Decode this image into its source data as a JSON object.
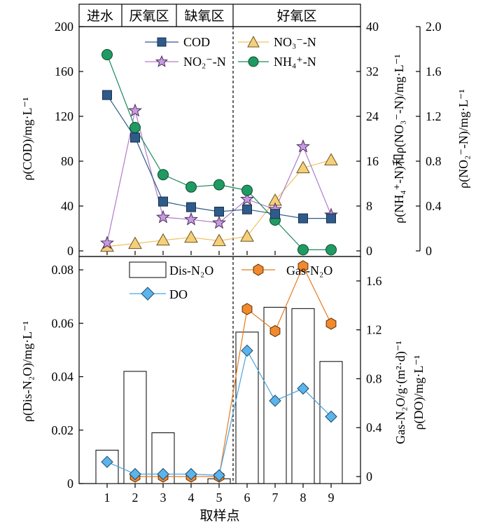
{
  "figure": {
    "zones": [
      "进水",
      "厌氧区",
      "缺氧区",
      "好氧区"
    ],
    "xlabel": "取样点"
  },
  "colors": {
    "cod": "#2e5b8a",
    "no3": "#f0c060",
    "no2": "#b07cc6",
    "nh4": "#1a8a5a",
    "gas": "#e87a1e",
    "do": "#4aa3e0"
  },
  "chart_data": [
    {
      "type": "line",
      "panel": "top",
      "categories": [
        "1",
        "2",
        "3",
        "4",
        "5",
        "6",
        "7",
        "8",
        "9"
      ],
      "ylabel_left": "ρ(COD)/mg·L⁻¹",
      "ylabel_right_1": "ρ(NH₄⁺-N)和ρ(NO₃⁻-N)/mg·L⁻¹",
      "ylabel_right_2": "ρ(NO₂⁻-N)/mg·L⁻¹",
      "ylim_left": [
        0,
        200
      ],
      "ylim_right_1": [
        0,
        40
      ],
      "ylim_right_2": [
        0,
        2.0
      ],
      "yticks_left": [
        "0",
        "40",
        "80",
        "120",
        "160",
        "200"
      ],
      "yticks_right_1": [
        "0",
        "8",
        "16",
        "24",
        "32",
        "40"
      ],
      "yticks_right_2": [
        "0",
        "0.4",
        "0.8",
        "1.2",
        "1.6",
        "2.0"
      ],
      "legend": [
        "COD",
        "NO₃⁻-N",
        "NO₂⁻-N",
        "NH₄⁺-N"
      ],
      "series": [
        {
          "name": "COD",
          "axis": "left",
          "values": [
            139,
            101,
            44,
            39,
            35,
            37,
            33,
            29,
            29
          ]
        },
        {
          "name": "NO₃⁻-N",
          "axis": "right_1",
          "values": [
            0.8,
            1.3,
            1.9,
            2.4,
            1.8,
            2.6,
            9.0,
            14.8,
            16.2
          ]
        },
        {
          "name": "NO₂⁻-N",
          "axis": "right_2",
          "values": [
            0.07,
            1.25,
            0.3,
            0.28,
            0.25,
            0.46,
            0.37,
            0.93,
            0.32
          ]
        },
        {
          "name": "NH₄⁺-N",
          "axis": "right_1",
          "values": [
            35.0,
            22.0,
            13.6,
            11.4,
            11.8,
            10.8,
            5.5,
            0.2,
            0.2
          ]
        }
      ]
    },
    {
      "type": "bar",
      "panel": "bottom",
      "categories": [
        "1",
        "2",
        "3",
        "4",
        "5",
        "6",
        "7",
        "8",
        "9"
      ],
      "xlabel": "取样点",
      "ylabel_left": "ρ(Dis-N₂O)/mg·L⁻¹",
      "ylabel_right": "Gas-N₂O/g·(m²·d)⁻¹",
      "ylabel_right_2": "ρ(DO)/mg·L⁻¹",
      "ylim_left": [
        0,
        0.085
      ],
      "ylim_right": [
        0,
        1.8
      ],
      "yticks_left": [
        "0",
        "0.02",
        "0.04",
        "0.06",
        "0.08"
      ],
      "yticks_right": [
        "0",
        "0.4",
        "0.8",
        "1.2",
        "1.6"
      ],
      "legend": [
        "Dis-N₂O",
        "Gas-N₂O",
        "DO"
      ],
      "series": [
        {
          "name": "Dis-N₂O",
          "kind": "bar",
          "axis": "left",
          "values": [
            0.0125,
            0.042,
            0.019,
            0.0,
            0.0018,
            0.0567,
            0.066,
            0.0655,
            0.0457
          ]
        },
        {
          "name": "Gas-N₂O",
          "kind": "line",
          "axis": "right",
          "values": [
            null,
            0.0,
            0.0,
            0.0,
            0.0,
            1.37,
            1.19,
            1.72,
            1.25
          ]
        },
        {
          "name": "DO",
          "kind": "line",
          "axis": "right",
          "values": [
            0.12,
            0.02,
            0.02,
            0.02,
            0.01,
            1.03,
            0.62,
            0.72,
            0.49
          ]
        }
      ]
    }
  ]
}
